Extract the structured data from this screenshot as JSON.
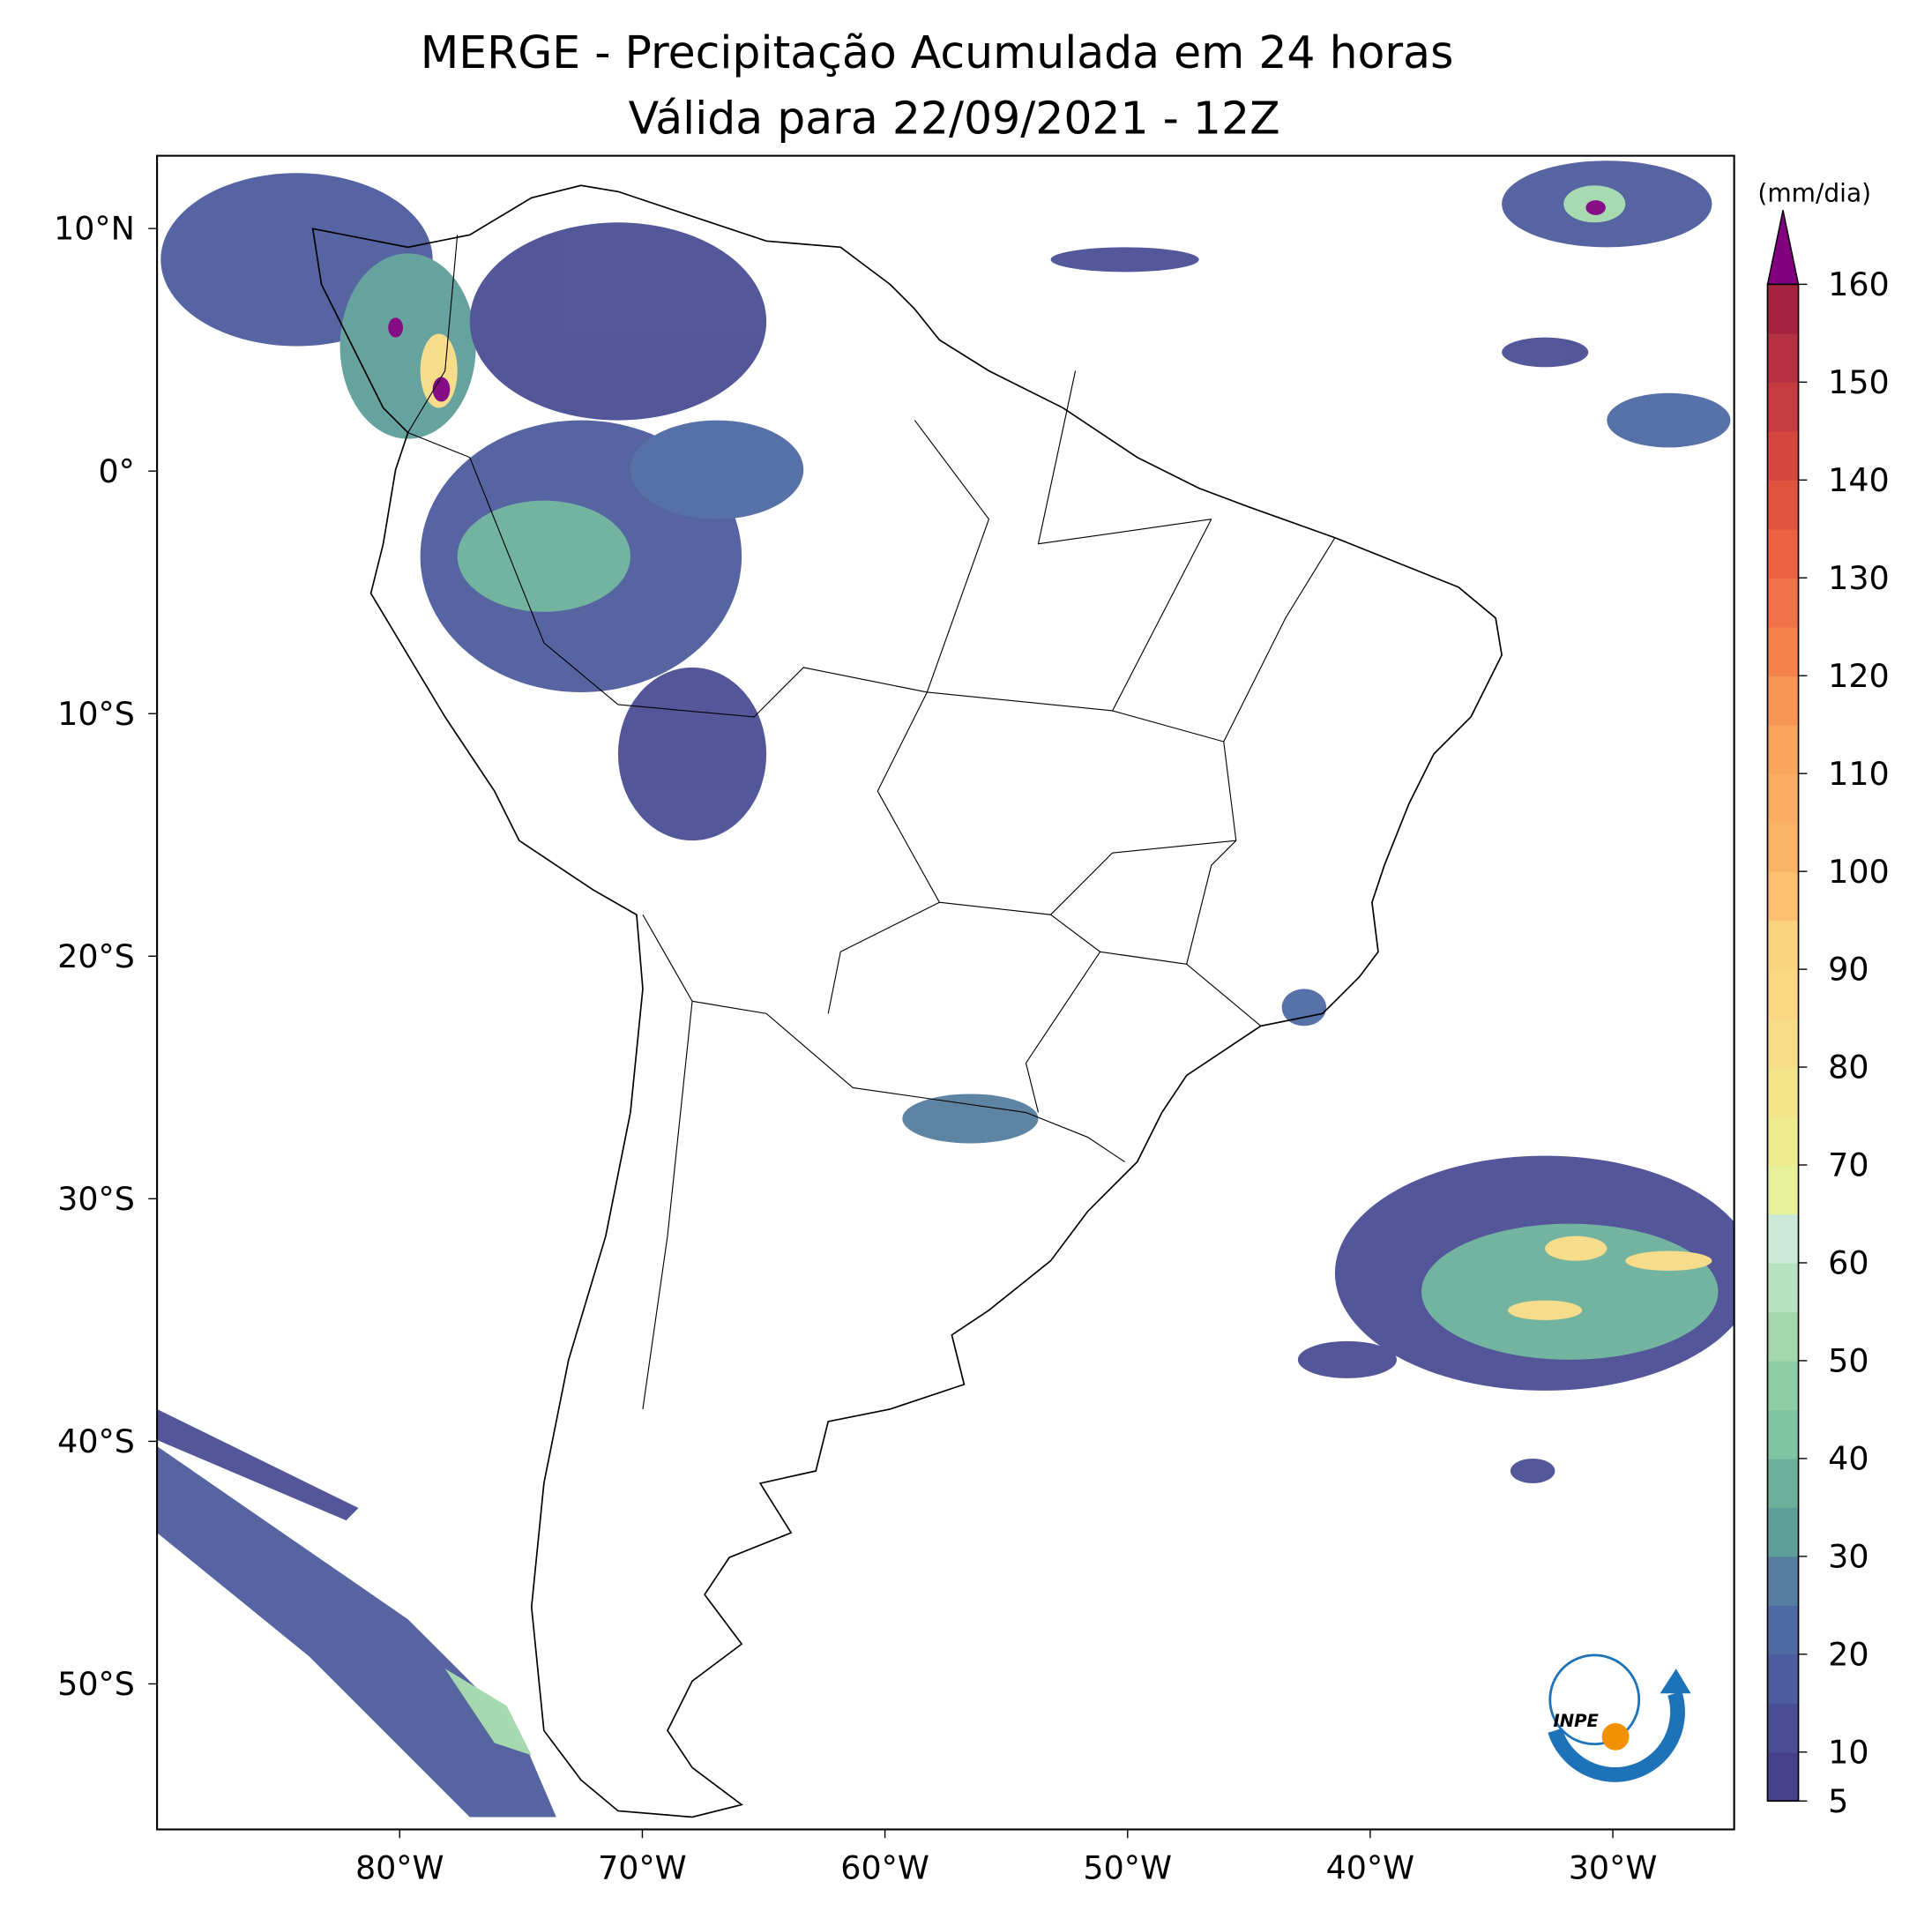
{
  "title": "MERGE - Precipitação Acumulada em 24 horas",
  "subtitle": "Válida para 22/09/2021 - 12Z",
  "map": {
    "xlim": [
      -90,
      -25
    ],
    "ylim": [
      -56,
      13
    ],
    "xticks": [
      {
        "value": -80,
        "label": "80°W"
      },
      {
        "value": -70,
        "label": "70°W"
      },
      {
        "value": -60,
        "label": "60°W"
      },
      {
        "value": -50,
        "label": "50°W"
      },
      {
        "value": -40,
        "label": "40°W"
      },
      {
        "value": -30,
        "label": "30°W"
      }
    ],
    "yticks": [
      {
        "value": 10,
        "label": "10°N"
      },
      {
        "value": 0,
        "label": "0°"
      },
      {
        "value": -10,
        "label": "10°S"
      },
      {
        "value": -20,
        "label": "20°S"
      },
      {
        "value": -30,
        "label": "30°S"
      },
      {
        "value": -40,
        "label": "40°S"
      },
      {
        "value": -50,
        "label": "50°S"
      }
    ]
  },
  "colorbar": {
    "label": "(mm/dia)",
    "lim": [
      5,
      160
    ],
    "ticks": [
      5,
      10,
      20,
      30,
      40,
      50,
      60,
      70,
      80,
      90,
      100,
      110,
      120,
      130,
      140,
      150,
      160
    ],
    "levels": [
      5,
      10,
      15,
      20,
      25,
      30,
      35,
      40,
      45,
      50,
      55,
      60,
      65,
      70,
      75,
      80,
      85,
      90,
      95,
      100,
      105,
      110,
      115,
      120,
      125,
      130,
      135,
      140,
      145,
      150,
      155,
      160
    ],
    "colors": [
      "#46418a",
      "#4a4f95",
      "#4d5c9e",
      "#4e6aa3",
      "#557d9f",
      "#5e9f9a",
      "#6cb09c",
      "#7fc5a4",
      "#8ecda6",
      "#a3d8ad",
      "#b6e2c0",
      "#cbe8d8",
      "#e6f19a",
      "#eeea8f",
      "#f3e48a",
      "#f6dc86",
      "#f9d783",
      "#fbd47f",
      "#fcc070",
      "#fbb466",
      "#fbae63",
      "#f9a55c",
      "#f79555",
      "#f4824d",
      "#f07248",
      "#eb6243",
      "#e0533f",
      "#d5483f",
      "#c53b40",
      "#b63142",
      "#a6243f"
    ],
    "extend_color": "#800080"
  },
  "logo": {
    "text": "INPE"
  }
}
